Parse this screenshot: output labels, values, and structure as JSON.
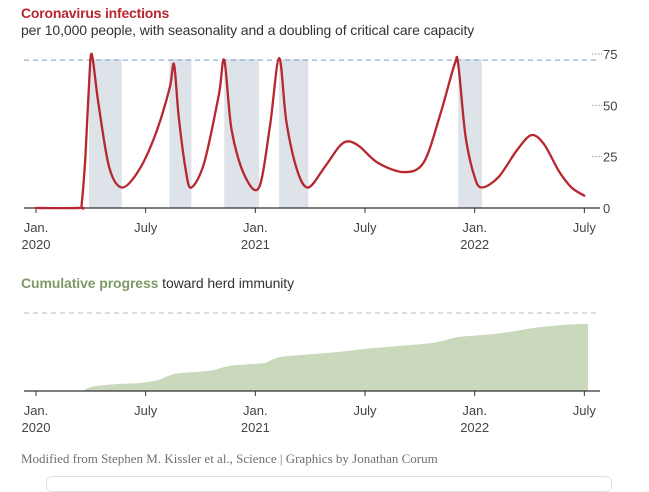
{
  "header": {
    "title": "Coronavirus infections",
    "subtitle": "per 10,000 people, with seasonality and a doubling of critical care capacity"
  },
  "progress_heading": {
    "highlight": "Cumulative progress",
    "rest": " toward herd immunity"
  },
  "credit": "Modified from Stephen M. Kissler et al., Science | Graphics by Jonathan Corum",
  "colors": {
    "infection_line": "#b7272f",
    "capacity_line": "#8fb0cf",
    "distancing_band": "#dde3e9",
    "immunity_fill": "#cad8bc",
    "title_red": "#b7272f",
    "progress_green": "#7e9a67"
  },
  "chart_data": [
    {
      "type": "line",
      "title": "Coronavirus infections",
      "subtitle": "per 10,000 people, with seasonality and a doubling of critical care capacity",
      "x_tick_labels": [
        {
          "month": "Jan.",
          "year": "2020",
          "x": 0
        },
        {
          "month": "July",
          "year": "",
          "x": 6
        },
        {
          "month": "Jan.",
          "year": "2021",
          "x": 12
        },
        {
          "month": "July",
          "year": "",
          "x": 18
        },
        {
          "month": "Jan.",
          "year": "2022",
          "x": 24
        },
        {
          "month": "July",
          "year": "",
          "x": 30
        }
      ],
      "y_ticks": [
        0,
        25,
        50,
        75
      ],
      "ylim": [
        0,
        75
      ],
      "xlim": [
        0,
        30.2
      ],
      "reference_line": 72,
      "distancing_periods": [
        [
          2.9,
          4.7
        ],
        [
          7.3,
          8.5
        ],
        [
          10.3,
          12.2
        ],
        [
          13.3,
          14.9
        ],
        [
          23.1,
          24.4
        ]
      ],
      "series": [
        {
          "values": [
            [
              0,
              0
            ],
            [
              2.4,
              0.1
            ],
            [
              2.5,
              2
            ],
            [
              2.7,
              25
            ],
            [
              2.9,
              60
            ],
            [
              3.05,
              75
            ],
            [
              3.4,
              52
            ],
            [
              4.0,
              20
            ],
            [
              4.7,
              10
            ],
            [
              5.6,
              18
            ],
            [
              6.5,
              35
            ],
            [
              7.3,
              58
            ],
            [
              7.55,
              70
            ],
            [
              7.8,
              45
            ],
            [
              8.2,
              18
            ],
            [
              8.5,
              10
            ],
            [
              9.2,
              22
            ],
            [
              10.0,
              55
            ],
            [
              10.3,
              72
            ],
            [
              10.7,
              38
            ],
            [
              11.4,
              16
            ],
            [
              12.2,
              10
            ],
            [
              12.8,
              40
            ],
            [
              13.3,
              73
            ],
            [
              13.7,
              42
            ],
            [
              14.3,
              18
            ],
            [
              14.9,
              10
            ],
            [
              15.8,
              20
            ],
            [
              16.6,
              30
            ],
            [
              17.1,
              32.5
            ],
            [
              17.7,
              30
            ],
            [
              18.7,
              22
            ],
            [
              20.1,
              17.5
            ],
            [
              21.2,
              22
            ],
            [
              22.1,
              45
            ],
            [
              22.9,
              70
            ],
            [
              23.1,
              70
            ],
            [
              23.5,
              35
            ],
            [
              24.0,
              15
            ],
            [
              24.4,
              10
            ],
            [
              25.3,
              15
            ],
            [
              26.3,
              28
            ],
            [
              27.1,
              35.5
            ],
            [
              27.8,
              31
            ],
            [
              28.6,
              18
            ],
            [
              29.3,
              10
            ],
            [
              30.0,
              6
            ]
          ]
        }
      ]
    },
    {
      "type": "area",
      "title": "Cumulative progress toward herd immunity",
      "x_tick_labels": [
        {
          "month": "Jan.",
          "year": "2020",
          "x": 0
        },
        {
          "month": "July",
          "year": "",
          "x": 6
        },
        {
          "month": "Jan.",
          "year": "2021",
          "x": 12
        },
        {
          "month": "July",
          "year": "",
          "x": 18
        },
        {
          "month": "Jan.",
          "year": "2022",
          "x": 24
        },
        {
          "month": "July",
          "year": "",
          "x": 30
        }
      ],
      "ylim": [
        0,
        100
      ],
      "xlim": [
        0,
        30.2
      ],
      "target_line": 100,
      "series": [
        {
          "values": [
            [
              0,
              0
            ],
            [
              2.4,
              0
            ],
            [
              2.7,
              2
            ],
            [
              3.0,
              5
            ],
            [
              3.5,
              7
            ],
            [
              4.5,
              9
            ],
            [
              5.5,
              10
            ],
            [
              6.5,
              13
            ],
            [
              7.0,
              17
            ],
            [
              7.6,
              22
            ],
            [
              8.5,
              24
            ],
            [
              9.5,
              26
            ],
            [
              10.2,
              30
            ],
            [
              10.8,
              33
            ],
            [
              11.5,
              34
            ],
            [
              12.5,
              36
            ],
            [
              13.0,
              41
            ],
            [
              13.5,
              44
            ],
            [
              15.0,
              47
            ],
            [
              16.5,
              50
            ],
            [
              18.0,
              54
            ],
            [
              19.0,
              56
            ],
            [
              20.0,
              58
            ],
            [
              21.5,
              61
            ],
            [
              22.2,
              64
            ],
            [
              23.0,
              69
            ],
            [
              24.0,
              71
            ],
            [
              25.0,
              73
            ],
            [
              26.0,
              76
            ],
            [
              27.0,
              80
            ],
            [
              28.0,
              83
            ],
            [
              29.0,
              85
            ],
            [
              30.2,
              86
            ]
          ]
        }
      ]
    }
  ]
}
